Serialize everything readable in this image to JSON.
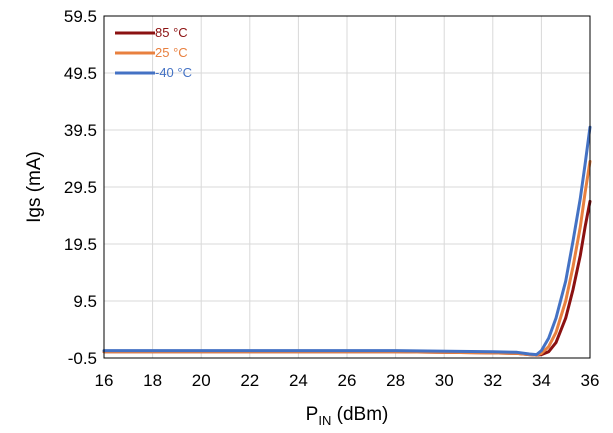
{
  "chart_data": {
    "type": "line",
    "xlabel": {
      "main": "P",
      "subscript": "IN",
      "unit": " (dBm)"
    },
    "ylabel": "Igs (mA)",
    "xlim": [
      16,
      36
    ],
    "ylim": [
      -0.5,
      59.5
    ],
    "xticks": [
      "16",
      "18",
      "20",
      "22",
      "24",
      "26",
      "28",
      "30",
      "32",
      "34",
      "36"
    ],
    "yticks": [
      "-0.5",
      "9.5",
      "19.5",
      "29.5",
      "39.5",
      "49.5",
      "59.5"
    ],
    "grid": true,
    "legend_position": "top-left",
    "series": [
      {
        "name": "85 °C",
        "color": "#8b1111",
        "x": [
          16,
          20,
          24,
          28,
          32,
          33,
          33.5,
          33.8,
          34.0,
          34.3,
          34.6,
          35.0,
          35.3,
          35.6,
          35.8,
          36.0
        ],
        "y": [
          0.6,
          0.6,
          0.6,
          0.6,
          0.4,
          0.3,
          0.1,
          0.0,
          0.1,
          0.6,
          2.2,
          6.5,
          11.5,
          17.5,
          22.5,
          27.0
        ]
      },
      {
        "name": "25 °C",
        "color": "#e8803f",
        "x": [
          16,
          20,
          24,
          28,
          32,
          33,
          33.5,
          33.8,
          34.0,
          34.3,
          34.6,
          35.0,
          35.3,
          35.6,
          35.8,
          36.0
        ],
        "y": [
          0.6,
          0.6,
          0.6,
          0.6,
          0.4,
          0.3,
          0.1,
          0.0,
          0.3,
          1.5,
          4.0,
          9.5,
          15.5,
          22.5,
          28.5,
          34.0
        ]
      },
      {
        "name": "-40 °C",
        "color": "#4472c4",
        "x": [
          16,
          20,
          24,
          28,
          32,
          33,
          33.5,
          33.8,
          34.0,
          34.3,
          34.6,
          35.0,
          35.3,
          35.6,
          35.8,
          36.0
        ],
        "y": [
          0.8,
          0.8,
          0.8,
          0.8,
          0.6,
          0.5,
          0.2,
          0.1,
          0.8,
          3.0,
          6.5,
          13.0,
          20.0,
          27.5,
          33.5,
          40.0
        ]
      }
    ]
  }
}
